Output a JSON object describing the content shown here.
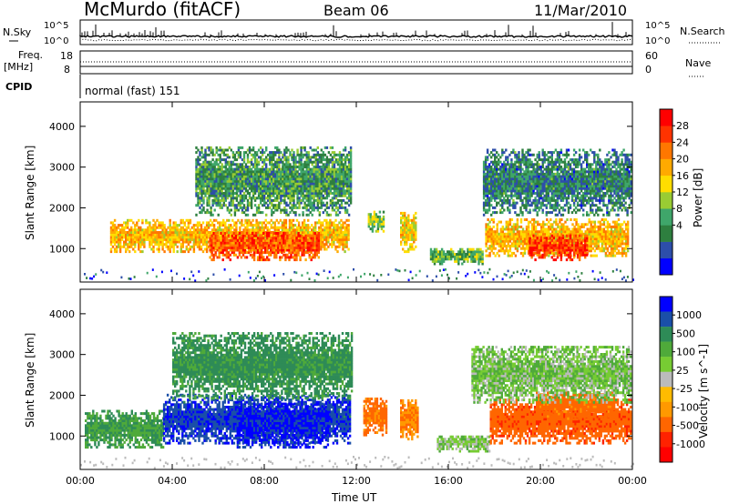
{
  "header": {
    "station": "McMurdo (fitACF)",
    "beam": "Beam 06",
    "date": "11/Mar/2010"
  },
  "top_panel": {
    "nsky_label": "N.Sky",
    "nsearch_label": "N.Search",
    "left_ticks": [
      "10^5",
      "10^0"
    ],
    "right_ticks": [
      "10^5",
      "10^0"
    ],
    "freq_label": "Freq.",
    "freq_unit": "[MHz]",
    "freq_ticks": [
      "18",
      "8"
    ],
    "nave_label": "Nave",
    "nave_ticks": [
      "60",
      "0"
    ],
    "cpid_label": "CPID",
    "cpid_value": "normal (fast) 151"
  },
  "colors": {
    "power_scale": [
      "#0000ff",
      "#2d4eaa",
      "#2e7f3f",
      "#3fa66a",
      "#99cc33",
      "#ffdd00",
      "#ffaa00",
      "#ff7700",
      "#ff3300",
      "#ff0000"
    ],
    "velocity_scale": [
      "#0000ff",
      "#1a4fa8",
      "#2e8b57",
      "#4faa3a",
      "#77cc33",
      "#bbbbbb",
      "#ffbb00",
      "#ff9900",
      "#ff6600",
      "#ff2200",
      "#ff0000"
    ]
  },
  "chart_data": [
    {
      "type": "heatmap",
      "name": "power",
      "ylabel": "Slant Range [km]",
      "xlabel": "",
      "x_ticks": [
        "00:00",
        "04:00",
        "08:00",
        "12:00",
        "16:00",
        "20:00",
        "00:00"
      ],
      "y_ticks": [
        1000,
        2000,
        3000,
        4000
      ],
      "xlim": [
        0,
        24
      ],
      "ylim": [
        180,
        4600
      ],
      "colorbar_label": "Power [dB]",
      "colorbar_ticks": [
        "28",
        "24",
        "20",
        "16",
        "12",
        "8",
        "4"
      ],
      "bands": [
        {
          "t": [
            1.3,
            11.7
          ],
          "range": [
            900,
            1700
          ],
          "value": 20
        },
        {
          "t": [
            5.6,
            10.4
          ],
          "range": [
            700,
            1400
          ],
          "value": 26
        },
        {
          "t": [
            12.5,
            13.2
          ],
          "range": [
            1400,
            1900
          ],
          "value": 14
        },
        {
          "t": [
            13.9,
            14.6
          ],
          "range": [
            900,
            1900
          ],
          "value": 18
        },
        {
          "t": [
            15.2,
            17.5
          ],
          "range": [
            600,
            1000
          ],
          "value": 12
        },
        {
          "t": [
            17.6,
            23.8
          ],
          "range": [
            800,
            1700
          ],
          "value": 20
        },
        {
          "t": [
            19.5,
            22.0
          ],
          "range": [
            700,
            1300
          ],
          "value": 27
        },
        {
          "t": [
            5.0,
            11.8
          ],
          "range": [
            1800,
            3500
          ],
          "value": 10
        },
        {
          "t": [
            17.5,
            23.9
          ],
          "range": [
            1800,
            3400
          ],
          "value": 8
        }
      ]
    },
    {
      "type": "heatmap",
      "name": "velocity",
      "ylabel": "Slant Range [km]",
      "xlabel": "Time UT",
      "x_ticks": [
        "00:00",
        "04:00",
        "08:00",
        "12:00",
        "16:00",
        "20:00",
        "00:00"
      ],
      "y_ticks": [
        1000,
        2000,
        3000,
        4000
      ],
      "xlim": [
        0,
        24
      ],
      "ylim": [
        180,
        4600
      ],
      "colorbar_label": "Velocity [m s^-1]",
      "colorbar_ticks": [
        "1000",
        "500",
        "100",
        "25",
        "-25",
        "-100",
        "-500",
        "-1000"
      ],
      "bands": [
        {
          "t": [
            0.2,
            3.6
          ],
          "range": [
            700,
            1600
          ],
          "value": 150
        },
        {
          "t": [
            3.6,
            11.7
          ],
          "range": [
            800,
            2000
          ],
          "value": 700
        },
        {
          "t": [
            6.8,
            10.8
          ],
          "range": [
            700,
            1800
          ],
          "value": 900
        },
        {
          "t": [
            12.3,
            13.3
          ],
          "range": [
            1000,
            1900
          ],
          "value": -200
        },
        {
          "t": [
            13.9,
            14.7
          ],
          "range": [
            900,
            1900
          ],
          "value": -150
        },
        {
          "t": [
            15.5,
            17.8
          ],
          "range": [
            600,
            1000
          ],
          "value": 40
        },
        {
          "t": [
            17.8,
            23.9
          ],
          "range": [
            800,
            1900
          ],
          "value": -300
        },
        {
          "t": [
            19.8,
            23.2
          ],
          "range": [
            1400,
            2100
          ],
          "value": -250
        },
        {
          "t": [
            4.0,
            11.8
          ],
          "range": [
            1900,
            3500
          ],
          "value": 200
        },
        {
          "t": [
            17.0,
            23.9
          ],
          "range": [
            1800,
            3200
          ],
          "value": 50
        }
      ]
    }
  ]
}
